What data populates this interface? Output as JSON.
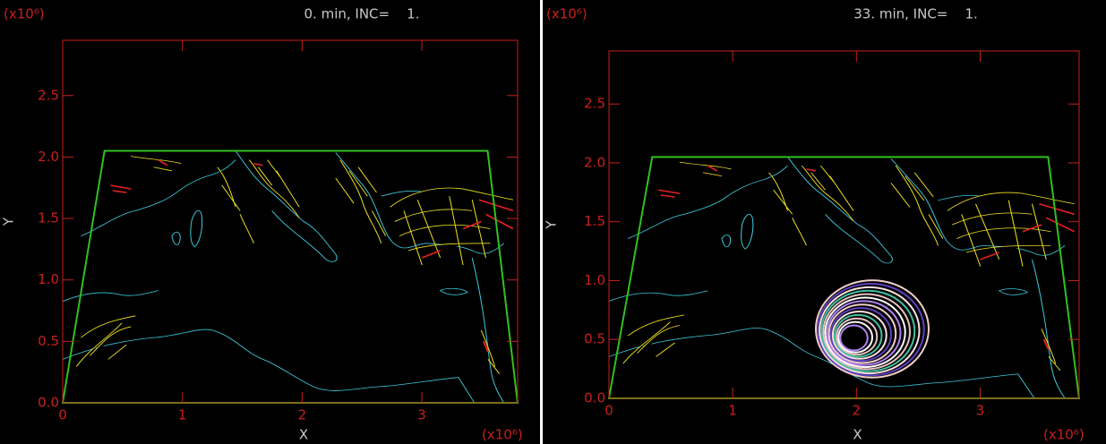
{
  "chart_data": [
    {
      "type": "map",
      "title": "0. min, INC=    1.",
      "x_label": "X",
      "y_label": "Y",
      "x_multiplier": "(x10⁶)",
      "y_multiplier": "(x10⁶)",
      "xlim": [
        0,
        3.8
      ],
      "ylim": [
        0,
        2.95
      ],
      "xticks": [
        0,
        1,
        2,
        3
      ],
      "yticks": [
        {
          "value": 0,
          "label": "0.0"
        },
        0.5,
        {
          "value": 1,
          "label": "1.0"
        },
        1.5,
        {
          "value": 2,
          "label": "2.0"
        },
        2.5
      ]
    },
    {
      "type": "map",
      "title": "33. min, INC=    1.",
      "x_label": "X",
      "y_label": "Y",
      "x_multiplier": "(x10⁶)",
      "y_multiplier": "(x10⁶)",
      "xlim": [
        0,
        3.8
      ],
      "ylim": [
        0,
        2.95
      ],
      "xticks": [
        0,
        1,
        2,
        3
      ],
      "yticks": [
        {
          "value": 0,
          "label": "0.0"
        },
        0.5,
        {
          "value": 1,
          "label": "1.0"
        },
        1.5,
        {
          "value": 2,
          "label": "2.0"
        },
        2.5
      ]
    }
  ]
}
